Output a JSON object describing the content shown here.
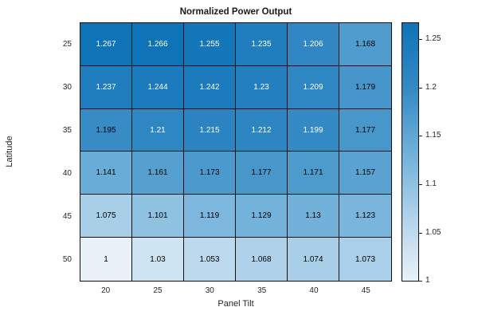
{
  "chart_data": {
    "type": "heatmap",
    "title": "Normalized Power Output",
    "xlabel": "Panel Tilt",
    "ylabel": "Latitude",
    "x_categories": [
      "20",
      "25",
      "30",
      "35",
      "40",
      "45"
    ],
    "y_categories": [
      "25",
      "30",
      "35",
      "40",
      "45",
      "50"
    ],
    "values": [
      [
        1.267,
        1.266,
        1.255,
        1.235,
        1.206,
        1.168
      ],
      [
        1.237,
        1.244,
        1.242,
        1.23,
        1.209,
        1.179
      ],
      [
        1.195,
        1.21,
        1.215,
        1.212,
        1.199,
        1.177
      ],
      [
        1.141,
        1.161,
        1.173,
        1.177,
        1.171,
        1.157
      ],
      [
        1.075,
        1.101,
        1.119,
        1.129,
        1.13,
        1.123
      ],
      [
        1,
        1.03,
        1.053,
        1.068,
        1.074,
        1.073
      ]
    ],
    "colorbar": {
      "ticks": [
        1,
        1.05,
        1.1,
        1.15,
        1.2,
        1.25
      ],
      "cmin": 1,
      "cmax": 1.267,
      "position": "right"
    },
    "colormap": {
      "stops": [
        {
          "pos": 0.0,
          "color": "#e9f2f9"
        },
        {
          "pos": 0.25,
          "color": "#b0d2ea"
        },
        {
          "pos": 0.5,
          "color": "#6fb0d9"
        },
        {
          "pos": 0.75,
          "color": "#3389c4"
        },
        {
          "pos": 1.0,
          "color": "#0f73b8"
        }
      ]
    },
    "cell_text_colors": {
      "light": "#ffffff",
      "dark": "#000000",
      "white_text_min_value": 1.197
    },
    "grid_line_color": "#101010",
    "grid": true,
    "legend": false
  }
}
